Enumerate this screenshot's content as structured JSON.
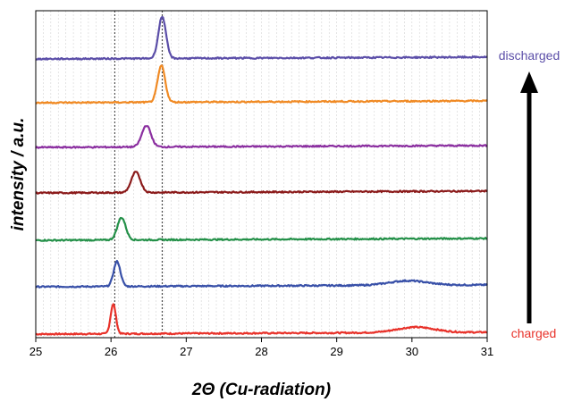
{
  "chart_data": {
    "type": "line",
    "xlabel": "2Θ (Cu-radiation)",
    "ylabel": "intensity / a.u.",
    "xlim": [
      25,
      31
    ],
    "x_ticks": [
      "25",
      "26",
      "27",
      "28",
      "29",
      "30",
      "31"
    ],
    "grid": "vertical-minor",
    "reference_lines": [
      26.05,
      26.68
    ],
    "annotations": {
      "top": "discharged",
      "bottom": "charged",
      "top_color": "#5b4ea8",
      "bottom_color": "#e8322a",
      "arrow": "upward, from charged to discharged"
    },
    "series": [
      {
        "color": "#e8322a",
        "peak_x": 26.03,
        "peak_height": 33,
        "peak_width": 0.035,
        "secondary_peak_x": 30.05,
        "secondary_peak_height": 6
      },
      {
        "color": "#3850a8",
        "peak_x": 26.08,
        "peak_height": 28,
        "peak_width": 0.045,
        "secondary_peak_x": 29.95,
        "secondary_peak_height": 5
      },
      {
        "color": "#239048",
        "peak_x": 26.14,
        "peak_height": 25,
        "peak_width": 0.055
      },
      {
        "color": "#8b1a1a",
        "peak_x": 26.33,
        "peak_height": 23,
        "peak_width": 0.06
      },
      {
        "color": "#8b2fa0",
        "peak_x": 26.47,
        "peak_height": 24,
        "peak_width": 0.06
      },
      {
        "color": "#f08a24",
        "peak_x": 26.67,
        "peak_height": 41,
        "peak_width": 0.05
      },
      {
        "color": "#5b4ea8",
        "peak_x": 26.68,
        "peak_height": 47,
        "peak_width": 0.05
      }
    ]
  }
}
